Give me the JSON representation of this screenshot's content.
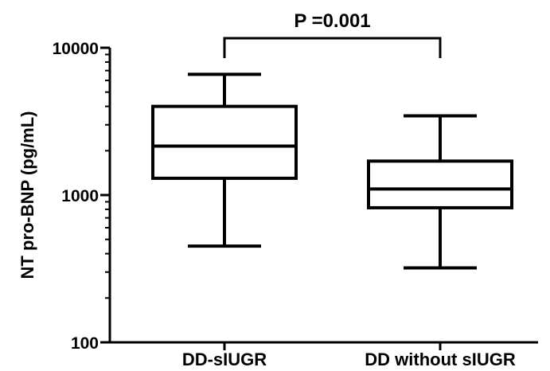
{
  "chart_data": {
    "type": "boxplot",
    "ylabel": "NT pro-BNP (pg/mL)",
    "yscale": "log",
    "ylim": [
      100,
      10000
    ],
    "yticks": [
      100,
      1000,
      10000
    ],
    "ytick_labels": [
      "100",
      "1000",
      "10000"
    ],
    "categories": [
      "DD-sIUGR",
      "DD without sIUGR"
    ],
    "boxes": [
      {
        "category": "DD-sIUGR",
        "min": 450,
        "q1": 1300,
        "median": 2150,
        "q3": 4000,
        "max": 6600
      },
      {
        "category": "DD without sIUGR",
        "min": 320,
        "q1": 820,
        "median": 1100,
        "q3": 1700,
        "max": 3450
      }
    ],
    "annotation": "P =0.001",
    "grid": false,
    "colors": {
      "stroke": "#000000",
      "fill": "#ffffff"
    }
  }
}
